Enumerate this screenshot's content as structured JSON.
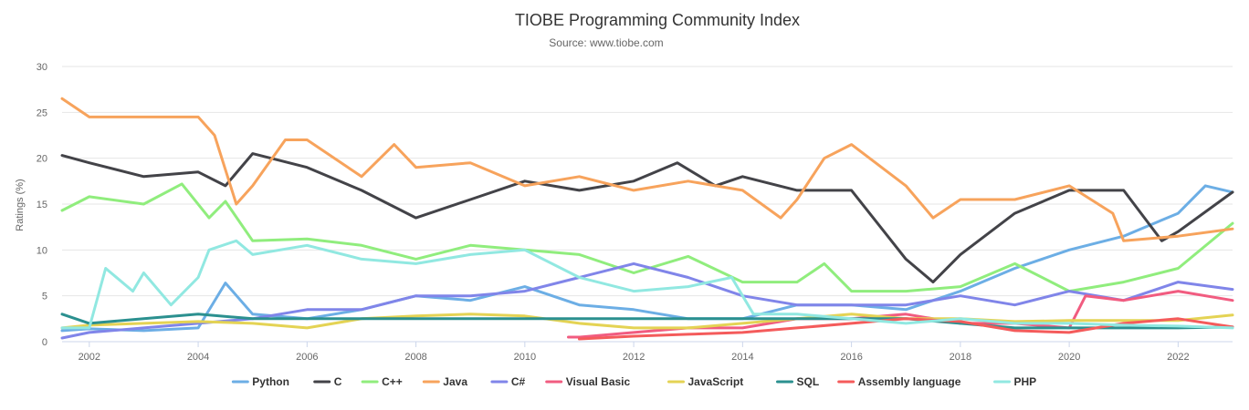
{
  "chart_data": {
    "type": "line",
    "title": "TIOBE Programming Community Index",
    "subtitle": "Source: www.tiobe.com",
    "ylabel": "Ratings (%)",
    "xlabel": "",
    "xlim": [
      2001.5,
      2023.0
    ],
    "ylim": [
      0,
      30
    ],
    "yticks": [
      0,
      5,
      10,
      15,
      20,
      25,
      30
    ],
    "xticks": [
      2002,
      2004,
      2006,
      2008,
      2010,
      2012,
      2014,
      2016,
      2018,
      2020,
      2022
    ],
    "grid": "horizontal",
    "legend": "bottom",
    "series": [
      {
        "name": "Python",
        "color": "#6caee5",
        "x": [
          2001.5,
          2002,
          2003,
          2004,
          2004.5,
          2005,
          2006,
          2007,
          2008,
          2009,
          2010,
          2011,
          2012,
          2013,
          2014,
          2015,
          2016,
          2017,
          2018,
          2019,
          2020,
          2021,
          2022,
          2022.5,
          2023
        ],
        "y": [
          1.2,
          1.4,
          1.2,
          1.5,
          6.4,
          3.0,
          2.5,
          3.5,
          5.0,
          4.5,
          6.0,
          4.0,
          3.5,
          2.5,
          2.5,
          4.0,
          4.0,
          3.5,
          5.5,
          8.0,
          10.0,
          11.5,
          14.0,
          17.0,
          16.3
        ]
      },
      {
        "name": "C",
        "color": "#434348",
        "x": [
          2001.5,
          2002,
          2003,
          2004,
          2004.5,
          2005,
          2006,
          2007,
          2008,
          2009,
          2010,
          2011,
          2012,
          2012.8,
          2013.5,
          2014,
          2015,
          2016,
          2017,
          2017.5,
          2018,
          2019,
          2020,
          2021,
          2021.7,
          2022,
          2023
        ],
        "y": [
          20.3,
          19.5,
          18.0,
          18.5,
          17.0,
          20.5,
          19.0,
          16.5,
          13.5,
          15.5,
          17.5,
          16.5,
          17.5,
          19.5,
          17.0,
          18.0,
          16.5,
          16.5,
          9.0,
          6.5,
          9.5,
          14.0,
          16.5,
          16.5,
          11.0,
          12.0,
          16.3
        ]
      },
      {
        "name": "C++",
        "color": "#90ed7d",
        "x": [
          2001.5,
          2002,
          2003,
          2003.7,
          2004.2,
          2004.5,
          2005,
          2006,
          2007,
          2008,
          2009,
          2010,
          2011,
          2012,
          2013,
          2014,
          2015,
          2015.5,
          2016,
          2017,
          2018,
          2019,
          2020,
          2021,
          2022,
          2023
        ],
        "y": [
          14.3,
          15.8,
          15.0,
          17.2,
          13.5,
          15.3,
          11.0,
          11.2,
          10.5,
          9.0,
          10.5,
          10.0,
          9.5,
          7.5,
          9.3,
          6.5,
          6.5,
          8.5,
          5.5,
          5.5,
          6.0,
          8.5,
          5.5,
          6.5,
          8.0,
          12.9
        ]
      },
      {
        "name": "Java",
        "color": "#f7a35c",
        "x": [
          2001.5,
          2002,
          2003,
          2004,
          2004.3,
          2004.7,
          2005,
          2005.6,
          2006,
          2007,
          2007.6,
          2008,
          2009,
          2010,
          2011,
          2012,
          2013,
          2014,
          2014.7,
          2015,
          2015.5,
          2016,
          2017,
          2017.5,
          2018,
          2019,
          2020,
          2020.8,
          2021,
          2022,
          2023
        ],
        "y": [
          26.5,
          24.5,
          24.5,
          24.5,
          22.5,
          15.0,
          17.0,
          22.0,
          22.0,
          18.0,
          21.5,
          19.0,
          19.5,
          17.0,
          18.0,
          16.5,
          17.5,
          16.5,
          13.5,
          15.5,
          20.0,
          21.5,
          17.0,
          13.5,
          15.5,
          15.5,
          17.0,
          14.0,
          11.0,
          11.5,
          12.3
        ]
      },
      {
        "name": "C#",
        "color": "#8085e9",
        "x": [
          2001.5,
          2002,
          2003,
          2004,
          2005,
          2006,
          2007,
          2008,
          2009,
          2010,
          2011,
          2012,
          2013,
          2014,
          2015,
          2016,
          2017,
          2018,
          2019,
          2020,
          2021,
          2022,
          2023
        ],
        "y": [
          0.4,
          1.0,
          1.5,
          2.0,
          2.5,
          3.5,
          3.5,
          5.0,
          5.0,
          5.5,
          7.0,
          8.5,
          7.0,
          5.0,
          4.0,
          4.0,
          4.0,
          5.0,
          4.0,
          5.5,
          4.5,
          6.5,
          5.7
        ]
      },
      {
        "name": "Visual Basic",
        "color": "#f15c80",
        "x": [
          2010.8,
          2011,
          2012,
          2013,
          2014,
          2015,
          2016,
          2017,
          2018,
          2019,
          2020,
          2020.3,
          2021,
          2022,
          2023
        ],
        "y": [
          0.5,
          0.5,
          1.0,
          1.5,
          1.5,
          2.5,
          2.5,
          3.0,
          2.0,
          2.0,
          1.5,
          5.0,
          4.5,
          5.5,
          4.5
        ]
      },
      {
        "name": "JavaScript",
        "color": "#e4d354",
        "x": [
          2001.5,
          2002,
          2003,
          2004,
          2005,
          2006,
          2007,
          2008,
          2009,
          2010,
          2011,
          2012,
          2013,
          2014,
          2015,
          2016,
          2017,
          2018,
          2019,
          2020,
          2021,
          2022,
          2023
        ],
        "y": [
          1.5,
          1.8,
          2.0,
          2.2,
          2.0,
          1.5,
          2.5,
          2.8,
          3.0,
          2.8,
          2.0,
          1.5,
          1.5,
          2.0,
          2.5,
          3.0,
          2.5,
          2.5,
          2.2,
          2.3,
          2.3,
          2.3,
          2.9
        ]
      },
      {
        "name": "SQL",
        "color": "#2b908f",
        "x": [
          2001.5,
          2002,
          2003,
          2004,
          2005,
          2006,
          2007,
          2008,
          2009,
          2010,
          2011,
          2012,
          2013,
          2014,
          2015,
          2016,
          2017,
          2018,
          2019,
          2020,
          2021,
          2022,
          2023
        ],
        "y": [
          3.0,
          2.0,
          2.5,
          3.0,
          2.5,
          2.5,
          2.5,
          2.5,
          2.5,
          2.5,
          2.5,
          2.5,
          2.5,
          2.5,
          2.5,
          2.5,
          2.5,
          2.0,
          1.5,
          1.5,
          1.5,
          1.5,
          1.6
        ]
      },
      {
        "name": "Assembly language",
        "color": "#f45b5b",
        "x": [
          2011,
          2012,
          2013,
          2014,
          2015,
          2016,
          2017,
          2018,
          2019,
          2020,
          2021,
          2022,
          2023
        ],
        "y": [
          0.3,
          0.6,
          0.8,
          1.0,
          1.5,
          2.0,
          2.5,
          2.2,
          1.2,
          1.0,
          2.0,
          2.5,
          1.6
        ]
      },
      {
        "name": "PHP",
        "color": "#91e8e1",
        "x": [
          2001.5,
          2002,
          2002.3,
          2002.8,
          2003,
          2003.5,
          2004,
          2004.2,
          2004.7,
          2005,
          2006,
          2007,
          2008,
          2009,
          2010,
          2011,
          2012,
          2013,
          2013.8,
          2014.2,
          2015,
          2016,
          2017,
          2018,
          2019,
          2020,
          2021,
          2022,
          2023
        ],
        "y": [
          1.5,
          1.5,
          8.0,
          5.5,
          7.5,
          4.0,
          7.0,
          10.0,
          11.0,
          9.5,
          10.5,
          9.0,
          8.5,
          9.5,
          10.0,
          7.0,
          5.5,
          6.0,
          7.0,
          3.0,
          3.0,
          2.5,
          2.0,
          2.5,
          2.0,
          2.0,
          1.8,
          1.7,
          1.5
        ]
      }
    ]
  }
}
